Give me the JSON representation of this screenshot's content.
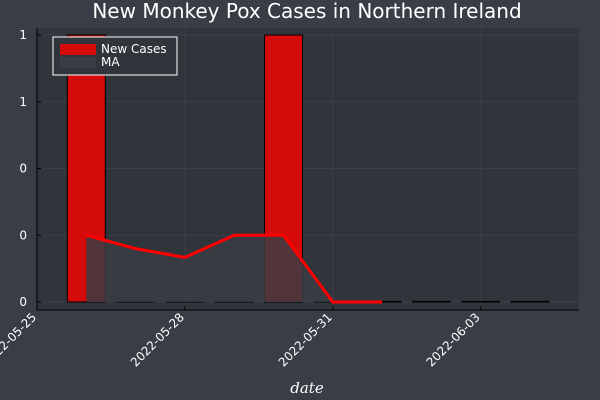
{
  "chart_data": {
    "type": "bar",
    "title": "New Monkey Pox Cases in Northern Ireland",
    "xlabel": "date",
    "ylabel": "",
    "ylim": [
      0,
      1.0
    ],
    "y_ticks": [
      {
        "value": 0,
        "label": "0"
      },
      {
        "value": 0.25,
        "label": "0"
      },
      {
        "value": 0.5,
        "label": "0"
      },
      {
        "value": 0.75,
        "label": "1"
      },
      {
        "value": 1.0,
        "label": "1"
      }
    ],
    "x_ticks": [
      "2022-05-25",
      "2022-05-28",
      "2022-05-31",
      "2022-06-03"
    ],
    "dates": [
      "2022-05-26",
      "2022-05-27",
      "2022-05-28",
      "2022-05-29",
      "2022-05-30",
      "2022-05-31",
      "2022-06-01",
      "2022-06-02",
      "2022-06-03",
      "2022-06-04"
    ],
    "series": [
      {
        "name": "New Cases",
        "type": "bar",
        "color": "#d50b0b",
        "values": [
          1,
          0,
          0,
          0,
          1,
          0,
          0,
          0,
          0,
          0
        ]
      },
      {
        "name": "MA",
        "type": "line",
        "color": "#ff0000",
        "fill_color": "#3a3d44",
        "x": [
          "2022-05-26",
          "2022-05-27",
          "2022-05-28",
          "2022-05-29",
          "2022-05-30",
          "2022-05-31",
          "2022-06-01"
        ],
        "values": [
          0.25,
          0.2,
          0.167,
          0.25,
          0.25,
          0,
          0
        ]
      }
    ],
    "legend": "top-left",
    "grid": true
  }
}
